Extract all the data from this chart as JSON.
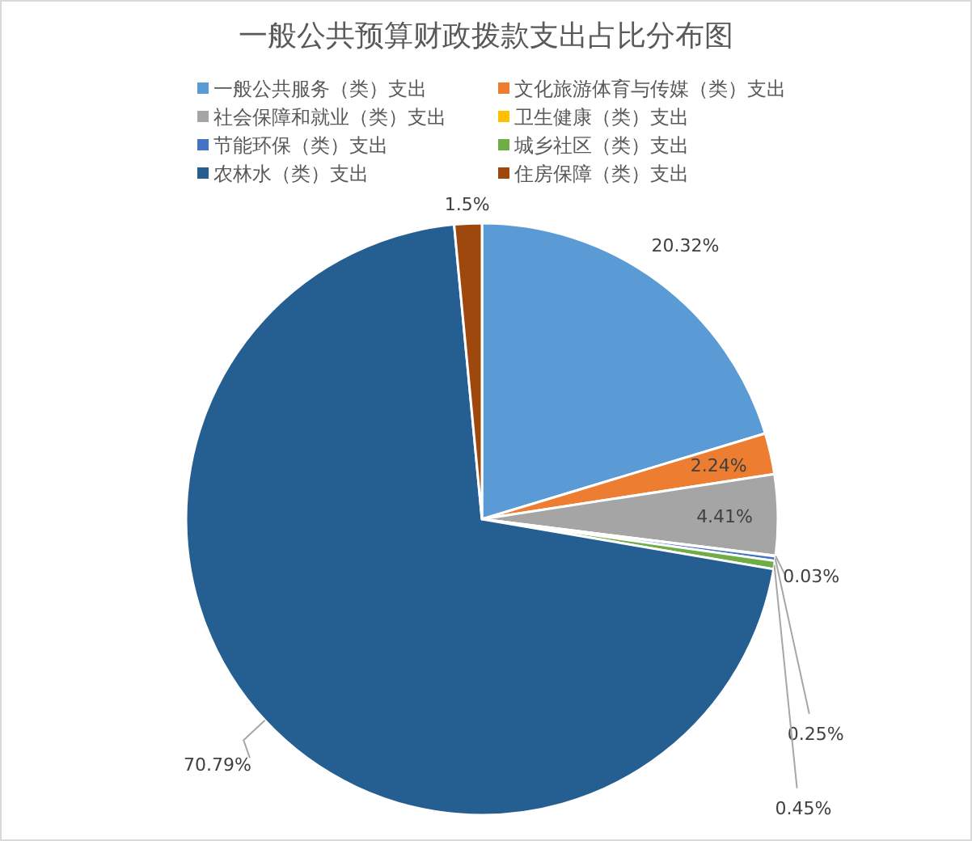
{
  "chart_data": {
    "type": "pie",
    "title": "一般公共预算财政拨款支出占比分布图",
    "categories": [
      "一般公共服务（类）支出",
      "文化旅游体育与传媒（类）支出",
      "社会保障和就业（类）支出",
      "卫生健康（类）支出",
      "节能环保（类）支出",
      "城乡社区（类）支出",
      "农林水（类）支出",
      "住房保障（类）支出"
    ],
    "values": [
      20.32,
      2.24,
      4.41,
      0.03,
      0.25,
      0.45,
      70.79,
      1.5
    ],
    "colors": [
      "#5b9bd5",
      "#ed7d31",
      "#a5a5a5",
      "#ffc000",
      "#4472c4",
      "#70ad47",
      "#255e91",
      "#9e480e"
    ],
    "value_labels": [
      "20.32%",
      "2.24%",
      "4.41%",
      "0.03%",
      "0.25%",
      "0.45%",
      "70.79%",
      "1.5%"
    ],
    "legend": "top"
  }
}
